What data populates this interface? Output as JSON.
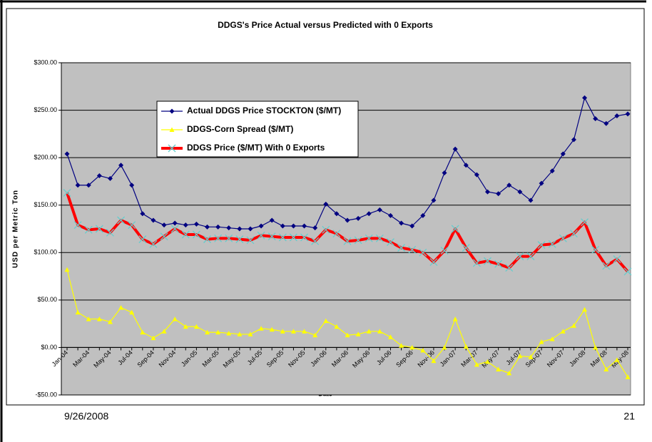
{
  "chart_data": {
    "type": "line",
    "title": "DDGS's Price Actual versus Predicted with 0 Exports",
    "x_label": "Date",
    "y_label": "USD per Metric Ton",
    "categories": [
      "Jan-04",
      null,
      "Mar-04",
      null,
      "May-04",
      null,
      "Jul-04",
      null,
      "Sep-04",
      null,
      "Nov-04",
      null,
      "Jan-05",
      null,
      "Mar-05",
      null,
      "May-05",
      null,
      "Jul-05",
      null,
      "Sep-05",
      null,
      "Nov-05",
      null,
      "Jan-06",
      null,
      "Mar-06",
      null,
      "May-06",
      null,
      "Jul-06",
      null,
      "Sep-06",
      null,
      "Nov-06",
      null,
      "Jan-07",
      null,
      "Mar-07",
      null,
      "May-07",
      null,
      "Jul-07",
      null,
      "Sep-07",
      null,
      "Nov-07",
      null,
      "Jan-08",
      null,
      "Mar-08",
      null,
      "May-08"
    ],
    "series": [
      {
        "name": "Actual DDGS Price STOCKTON ($/MT)",
        "color": "#000080",
        "marker_color": "#000080",
        "marker": "diamond",
        "values": [
          204,
          171,
          171,
          181,
          178,
          192,
          171,
          141,
          134,
          129,
          131,
          129,
          130,
          127,
          127,
          126,
          125,
          125,
          128,
          134,
          128,
          128,
          128,
          126,
          151,
          141,
          134,
          136,
          141,
          145,
          139,
          131,
          128,
          139,
          155,
          184,
          209,
          192,
          182,
          164,
          162,
          171,
          164,
          155,
          173,
          186,
          204,
          219,
          263,
          241,
          236,
          244,
          246
        ]
      },
      {
        "name": "DDGS-Corn Spread ($/MT)",
        "color": "#ffff00",
        "marker_color": "#ffff00",
        "marker": "triangle",
        "values": [
          82,
          37,
          30,
          30,
          27,
          42,
          37,
          16,
          10,
          17,
          30,
          22,
          22,
          16,
          16,
          15,
          14,
          14,
          20,
          19,
          17,
          17,
          17,
          13,
          28,
          22,
          13,
          14,
          17,
          17,
          11,
          2,
          0,
          -3,
          -14,
          0,
          30,
          1,
          -18,
          -15,
          -23,
          -27,
          -9,
          -10,
          6,
          9,
          17,
          23,
          40,
          0,
          -23,
          -13,
          -31
        ]
      },
      {
        "name": "DDGS Price ($/MT) With 0 Exports",
        "color": "#ff0000",
        "marker_color": "#66cccc",
        "marker": "x",
        "values": [
          163,
          129,
          124,
          125,
          121,
          134,
          129,
          114,
          109,
          117,
          125,
          119,
          119,
          114,
          115,
          115,
          114,
          113,
          118,
          117,
          116,
          116,
          116,
          112,
          124,
          120,
          112,
          113,
          115,
          115,
          111,
          105,
          103,
          100,
          90,
          102,
          125,
          105,
          89,
          91,
          88,
          84,
          96,
          96,
          108,
          109,
          115,
          120,
          132,
          103,
          86,
          93,
          80
        ]
      }
    ],
    "ylim": [
      -50,
      300
    ],
    "yticks": [
      {
        "value": -50,
        "label": "-$50.00"
      },
      {
        "value": 0,
        "label": "$0.00"
      },
      {
        "value": 50,
        "label": "$50.00"
      },
      {
        "value": 100,
        "label": "$100.00"
      },
      {
        "value": 150,
        "label": "$150.00"
      },
      {
        "value": 200,
        "label": "$200.00"
      },
      {
        "value": 250,
        "label": "$250.00"
      },
      {
        "value": 300,
        "label": "$300.00"
      }
    ],
    "grid": true,
    "plot_background": "#c0c0c0",
    "legend": "upper left"
  },
  "footer": {
    "date": "9/26/2008",
    "page": "21"
  }
}
